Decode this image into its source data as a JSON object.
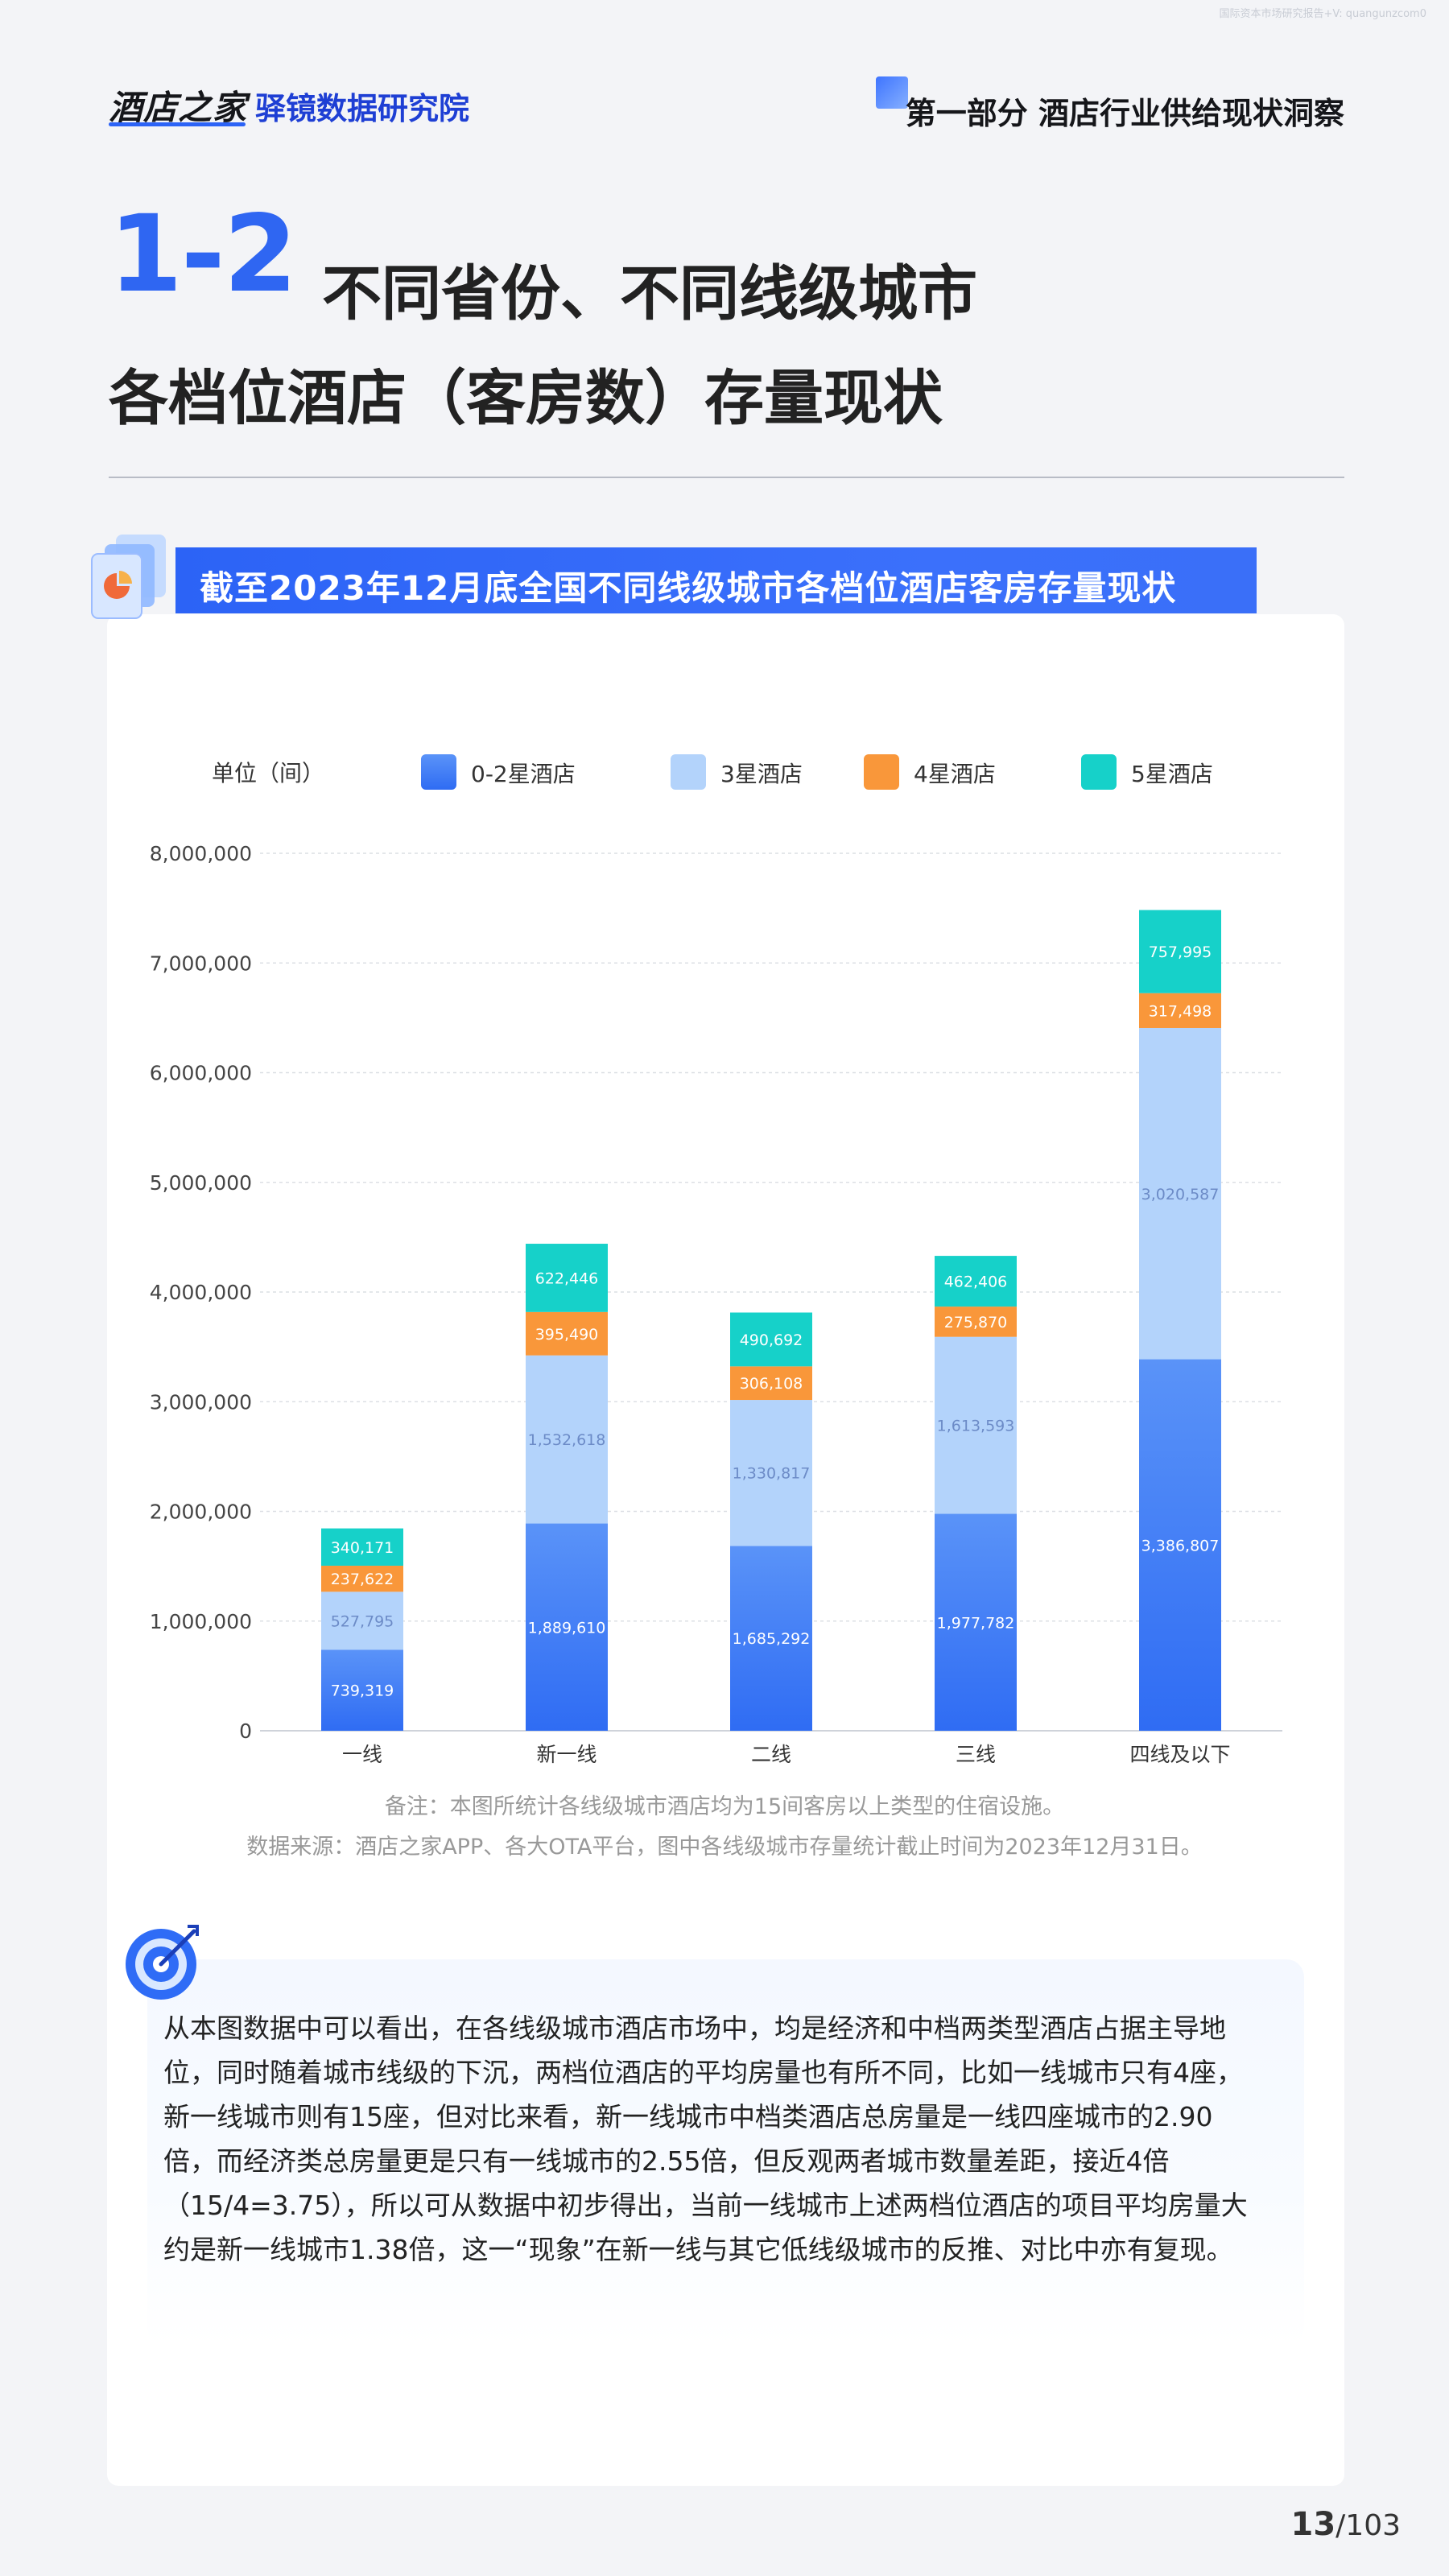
{
  "watermark": "国际资本市场研究报告+V: quangunzcom0",
  "header": {
    "brand_logo": "酒店之家",
    "brand_institute": "驿镜数据研究院",
    "section_title": "第一部分 酒店行业供给现状洞察"
  },
  "title": {
    "number": "1-2",
    "line1": "不同省份、不同线级城市",
    "line2": "各档位酒店（客房数）存量现状"
  },
  "chart_banner": "截至2023年12月底全国不同线级城市各档位酒店客房存量现状",
  "chart_data": {
    "type": "bar",
    "stacked": true,
    "unit_label": "单位（间）",
    "categories": [
      "一线",
      "新一线",
      "二线",
      "三线",
      "四线及以下"
    ],
    "series": [
      {
        "name": "0-2星酒店",
        "color": "#3f7cf7",
        "values": [
          739319,
          1889610,
          1685292,
          1977782,
          3386807
        ],
        "labels": [
          "739,319",
          "1,889,610",
          "1,685,292",
          "1,977,782",
          "3,386,807"
        ]
      },
      {
        "name": "3星酒店",
        "color": "#b3d3fb",
        "values": [
          527795,
          1532618,
          1330817,
          1613593,
          3020587
        ],
        "labels": [
          "527,795",
          "1,532,618",
          "1,330,817",
          "1,613,593",
          "3,020,587"
        ]
      },
      {
        "name": "4星酒店",
        "color": "#f9973a",
        "values": [
          237622,
          395490,
          306108,
          275870,
          317498
        ],
        "labels": [
          "237,622",
          "395,490",
          "306,108",
          "275,870",
          "317,498"
        ]
      },
      {
        "name": "5星酒店",
        "color": "#16d1c9",
        "values": [
          340171,
          622446,
          490692,
          462406,
          757995
        ],
        "labels": [
          "340,171",
          "622,446",
          "490,692",
          "462,406",
          "757,995"
        ]
      }
    ],
    "ylim": [
      0,
      8000000
    ],
    "yticks": [
      0,
      1000000,
      2000000,
      3000000,
      4000000,
      5000000,
      6000000,
      7000000,
      8000000
    ],
    "ytick_labels": [
      "0",
      "1,000,000",
      "2,000,000",
      "3,000,000",
      "4,000,000",
      "5,000,000",
      "6,000,000",
      "7,000,000",
      "8,000,000"
    ],
    "grid": true,
    "legend_position": "top"
  },
  "notes": {
    "remark": "备注：本图所统计各线级城市酒店均为15间客房以上类型的住宿设施。",
    "source": "数据来源：酒店之家APP、各大OTA平台，图中各线级城市存量统计截止时间为2023年12月31日。"
  },
  "analysis": "从本图数据中可以看出，在各线级城市酒店市场中，均是经济和中档两类型酒店占据主导地位，同时随着城市线级的下沉，两档位酒店的平均房量也有所不同，比如一线城市只有4座，新一线城市则有15座，但对比来看，新一线城市中档类酒店总房量是一线四座城市的2.90倍，而经济类总房量更是只有一线城市的2.55倍，但反观两者城市数量差距，接近4倍（15/4=3.75），所以可从数据中初步得出，当前一线城市上述两档位酒店的项目平均房量大约是新一线城市1.38倍，这一“现象”在新一线与其它低线级城市的反推、对比中亦有复现。",
  "pager": {
    "current": "13",
    "total": "/103"
  }
}
